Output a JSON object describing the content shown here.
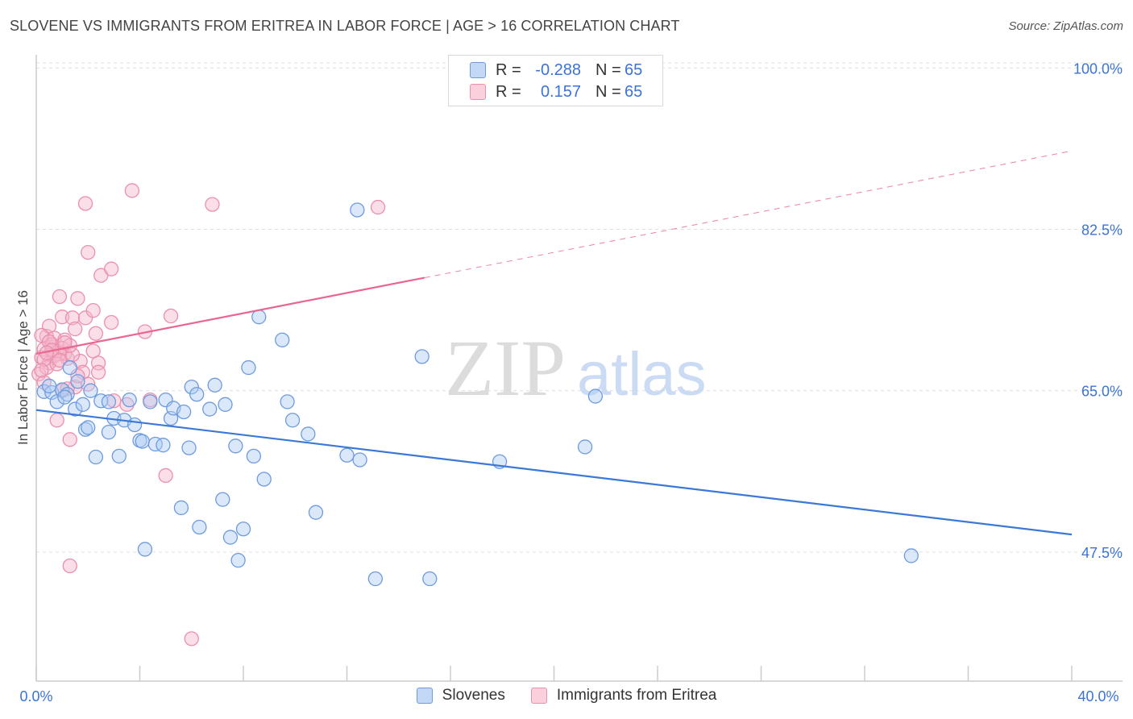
{
  "title": "SLOVENE VS IMMIGRANTS FROM ERITREA IN LABOR FORCE | AGE > 16 CORRELATION CHART",
  "source": "Source: ZipAtlas.com",
  "watermark": {
    "zip": "ZIP",
    "atlas": "atlas"
  },
  "legend": {
    "rows": [
      {
        "r_label": "R =",
        "r_value": "-0.288",
        "n_label": "N =",
        "n_value": "65"
      },
      {
        "r_label": "R =",
        "r_value": "0.157",
        "n_label": "N =",
        "n_value": "65"
      }
    ]
  },
  "colors": {
    "blue": "#3b78d8",
    "blue_fill": "#aecbf2",
    "pink": "#e8668f",
    "pink_fill": "#f5b8cb",
    "tick_text": "#3b73d6",
    "grid": "#dddddd"
  },
  "chart_data": {
    "type": "scatter",
    "title": "SLOVENE VS IMMIGRANTS FROM ERITREA IN LABOR FORCE | AGE > 16 CORRELATION CHART",
    "xlabel": "",
    "ylabel": "In Labor Force | Age > 16",
    "xlim": [
      0,
      40
    ],
    "ylim": [
      33.5,
      103
    ],
    "x_ticks": [
      0,
      4,
      8,
      12,
      16,
      20,
      24,
      28,
      32,
      36,
      40
    ],
    "x_tick_labels": {
      "first": "0.0%",
      "last": "40.0%"
    },
    "y_ticks": [
      47.5,
      65.0,
      82.5,
      100.0
    ],
    "y_tick_labels": [
      "47.5%",
      "65.0%",
      "82.5%",
      "100.0%"
    ],
    "grid": true,
    "legend_position": "top-center",
    "series": [
      {
        "name": "Slovenes",
        "color": "#3b78d8",
        "trend": {
          "x": [
            0,
            40
          ],
          "y": [
            62.9,
            49.4
          ],
          "dashed_from": null
        },
        "points": [
          [
            0.3,
            64.9
          ],
          [
            0.6,
            64.8
          ],
          [
            0.8,
            63.8
          ],
          [
            1.0,
            65.1
          ],
          [
            1.2,
            64.6
          ],
          [
            1.3,
            67.5
          ],
          [
            1.5,
            63.0
          ],
          [
            1.6,
            66.0
          ],
          [
            1.8,
            63.5
          ],
          [
            1.9,
            60.8
          ],
          [
            2.1,
            65.0
          ],
          [
            2.3,
            57.8
          ],
          [
            2.5,
            63.9
          ],
          [
            2.8,
            63.8
          ],
          [
            2.8,
            60.5
          ],
          [
            3.0,
            62.0
          ],
          [
            3.2,
            57.9
          ],
          [
            3.4,
            61.8
          ],
          [
            3.6,
            64.0
          ],
          [
            3.8,
            61.3
          ],
          [
            4.0,
            59.6
          ],
          [
            4.1,
            59.5
          ],
          [
            4.2,
            47.8
          ],
          [
            4.4,
            63.8
          ],
          [
            4.6,
            59.2
          ],
          [
            4.9,
            59.1
          ],
          [
            5.0,
            64.0
          ],
          [
            5.2,
            62.0
          ],
          [
            5.3,
            63.1
          ],
          [
            5.6,
            52.3
          ],
          [
            5.7,
            62.7
          ],
          [
            5.9,
            58.8
          ],
          [
            6.0,
            65.4
          ],
          [
            6.2,
            64.6
          ],
          [
            6.3,
            50.2
          ],
          [
            6.7,
            63.0
          ],
          [
            6.9,
            65.6
          ],
          [
            7.2,
            53.2
          ],
          [
            7.3,
            63.5
          ],
          [
            7.5,
            49.1
          ],
          [
            7.7,
            59.0
          ],
          [
            7.8,
            46.6
          ],
          [
            8.0,
            50.0
          ],
          [
            8.2,
            67.5
          ],
          [
            8.4,
            57.9
          ],
          [
            8.6,
            73.0
          ],
          [
            8.8,
            55.4
          ],
          [
            9.5,
            70.5
          ],
          [
            9.7,
            63.8
          ],
          [
            9.9,
            61.8
          ],
          [
            10.5,
            60.3
          ],
          [
            10.8,
            51.8
          ],
          [
            12.0,
            58.0
          ],
          [
            12.4,
            84.6
          ],
          [
            12.5,
            57.5
          ],
          [
            13.1,
            44.6
          ],
          [
            14.9,
            68.7
          ],
          [
            15.2,
            44.6
          ],
          [
            17.9,
            57.3
          ],
          [
            21.2,
            58.9
          ],
          [
            21.6,
            64.4
          ],
          [
            33.8,
            47.1
          ],
          [
            0.5,
            65.5
          ],
          [
            1.1,
            64.3
          ],
          [
            2.0,
            61.0
          ]
        ]
      },
      {
        "name": "Immigrants from Eritrea",
        "color": "#e8668f",
        "trend": {
          "x": [
            0,
            40
          ],
          "y": [
            69.0,
            91.0
          ],
          "dashed_from": 15.0
        },
        "points": [
          [
            0.1,
            66.8
          ],
          [
            0.2,
            68.6
          ],
          [
            0.3,
            69.5
          ],
          [
            0.4,
            70.9
          ],
          [
            0.5,
            72.0
          ],
          [
            0.5,
            68.0
          ],
          [
            0.6,
            69.8
          ],
          [
            0.7,
            70.7
          ],
          [
            0.8,
            69.3
          ],
          [
            0.8,
            61.8
          ],
          [
            0.9,
            75.2
          ],
          [
            1.0,
            73.0
          ],
          [
            1.0,
            65.0
          ],
          [
            1.1,
            69.0
          ],
          [
            1.2,
            68.5
          ],
          [
            1.3,
            46.0
          ],
          [
            1.3,
            59.7
          ],
          [
            1.4,
            72.9
          ],
          [
            1.5,
            71.7
          ],
          [
            1.6,
            75.0
          ],
          [
            1.7,
            68.2
          ],
          [
            1.8,
            67.0
          ],
          [
            1.9,
            72.9
          ],
          [
            1.9,
            85.3
          ],
          [
            2.0,
            65.7
          ],
          [
            2.0,
            80.0
          ],
          [
            2.2,
            69.3
          ],
          [
            2.2,
            73.7
          ],
          [
            2.3,
            71.2
          ],
          [
            2.4,
            68.0
          ],
          [
            2.4,
            67.0
          ],
          [
            2.5,
            77.5
          ],
          [
            2.9,
            78.2
          ],
          [
            2.9,
            72.4
          ],
          [
            3.0,
            63.9
          ],
          [
            3.5,
            63.5
          ],
          [
            3.7,
            86.7
          ],
          [
            4.2,
            71.4
          ],
          [
            4.4,
            64.0
          ],
          [
            5.0,
            55.8
          ],
          [
            5.2,
            73.1
          ],
          [
            6.0,
            38.1
          ],
          [
            6.8,
            85.2
          ],
          [
            13.2,
            84.9
          ],
          [
            0.3,
            65.9
          ],
          [
            0.6,
            70.0
          ],
          [
            0.9,
            69.0
          ],
          [
            1.1,
            70.5
          ],
          [
            1.5,
            65.4
          ],
          [
            0.2,
            71.0
          ],
          [
            0.4,
            67.5
          ],
          [
            0.7,
            68.8
          ],
          [
            1.0,
            69.6
          ],
          [
            1.2,
            65.2
          ],
          [
            0.3,
            68.4
          ],
          [
            0.5,
            70.3
          ],
          [
            0.8,
            67.9
          ],
          [
            1.4,
            68.9
          ],
          [
            0.6,
            69.4
          ],
          [
            0.9,
            68.3
          ],
          [
            1.6,
            66.6
          ],
          [
            1.3,
            69.9
          ],
          [
            0.2,
            67.2
          ],
          [
            0.4,
            69.1
          ],
          [
            1.1,
            70.2
          ]
        ]
      }
    ]
  }
}
